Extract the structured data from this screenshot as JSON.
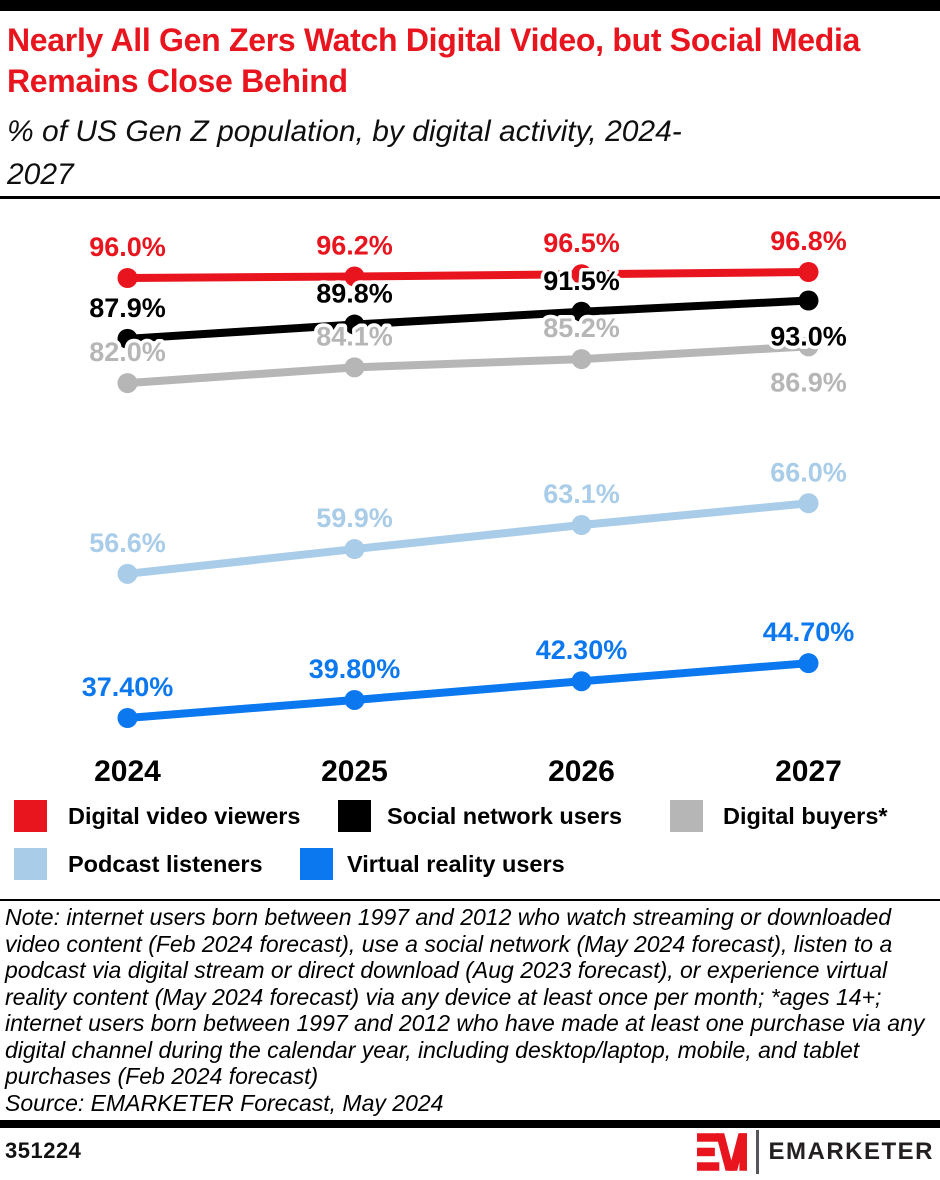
{
  "header": {
    "title": "Nearly All Gen Zers Watch Digital Video, but Social Media Remains Close Behind",
    "subtitle": "% of US Gen Z population, by digital activity, 2024-2027"
  },
  "chart_data": {
    "type": "line",
    "title": "Nearly All Gen Zers Watch Digital Video, but Social Media Remains Close Behind",
    "subtitle": "% of US Gen Z population, by digital activity, 2024-2027",
    "categories": [
      "2024",
      "2025",
      "2026",
      "2027"
    ],
    "series": [
      {
        "name": "Digital video viewers",
        "color": "#e8151f",
        "values": [
          96.0,
          96.2,
          96.5,
          96.8
        ],
        "labels": [
          "96.0%",
          "96.2%",
          "96.5%",
          "96.8%"
        ],
        "label_side": [
          "above",
          "above",
          "above",
          "above"
        ]
      },
      {
        "name": "Social network users",
        "color": "#000000",
        "values": [
          87.9,
          89.8,
          91.5,
          93.0
        ],
        "labels": [
          "87.9%",
          "89.8%",
          "91.5%",
          "93.0%"
        ],
        "label_side": [
          "above",
          "above",
          "above",
          "below"
        ]
      },
      {
        "name": "Digital buyers*",
        "color": "#b6b6b6",
        "values": [
          82.0,
          84.1,
          85.2,
          86.9
        ],
        "labels": [
          "82.0%",
          "84.1%",
          "85.2%",
          "86.9%"
        ],
        "label_side": [
          "above",
          "above",
          "above",
          "below"
        ]
      },
      {
        "name": "Podcast listeners",
        "color": "#a9cce9",
        "values": [
          56.6,
          59.9,
          63.1,
          66.0
        ],
        "labels": [
          "56.6%",
          "59.9%",
          "63.1%",
          "66.0%"
        ],
        "label_side": [
          "above",
          "above",
          "above",
          "above"
        ]
      },
      {
        "name": "Virtual reality users",
        "color": "#0b78f0",
        "values": [
          37.4,
          39.8,
          42.3,
          44.7
        ],
        "labels": [
          "37.40%",
          "39.80%",
          "42.30%",
          "44.70%"
        ],
        "label_side": [
          "above",
          "above",
          "above",
          "above"
        ]
      }
    ],
    "xlabel": "",
    "ylabel": "",
    "value_range_shown": [
      37.4,
      96.8
    ],
    "grid": false,
    "data_labels": true,
    "legend_position": "bottom"
  },
  "legend": {
    "items": [
      {
        "label": "Digital video viewers",
        "color": "#e8151f"
      },
      {
        "label": "Social network users",
        "color": "#000000"
      },
      {
        "label": "Digital buyers*",
        "color": "#b6b6b6"
      },
      {
        "label": "Podcast listeners",
        "color": "#a9cce9"
      },
      {
        "label": "Virtual reality users",
        "color": "#0b78f0"
      }
    ]
  },
  "note": {
    "text": "Note: internet users born between 1997 and 2012 who watch streaming or downloaded video content (Feb 2024 forecast), use a social network (May 2024 forecast), listen to a podcast via digital stream or direct download (Aug 2023 forecast), or experience virtual reality content (May 2024 forecast) via any device at least once per month; *ages 14+; internet users born between 1997 and 2012 who have made at least one purchase via any digital channel during the calendar year, including desktop/laptop, mobile, and tablet purchases (Feb 2024 forecast)",
    "source": "Source: EMARKETER Forecast, May 2024"
  },
  "footer": {
    "chart_id": "351224",
    "brand": "EMARKETER",
    "brand_red": "#e8151f"
  }
}
